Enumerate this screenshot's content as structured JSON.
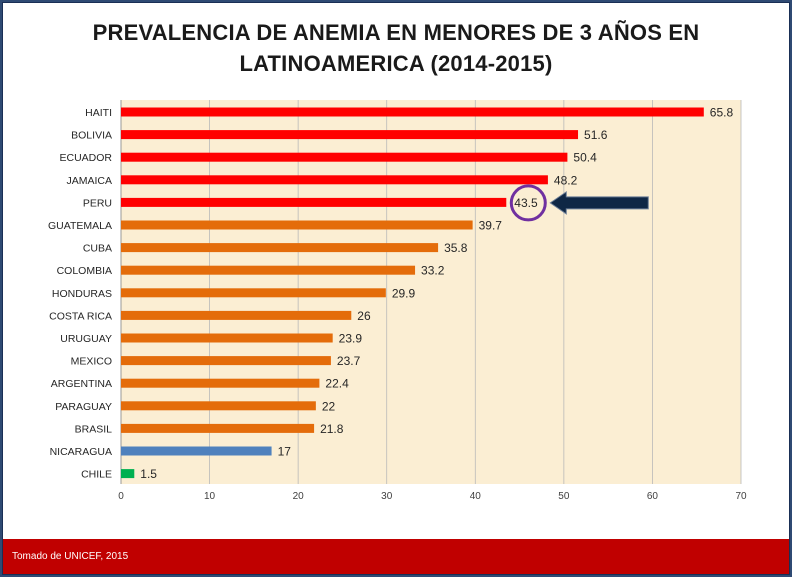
{
  "title_lines": [
    "PREVALENCIA DE ANEMIA EN MENORES DE 3 AÑOS EN",
    "LATINOAMERICA (2014-2015)"
  ],
  "footer": "Tomado de UNICEF, 2015",
  "colors": {
    "red": "#ff0000",
    "orange": "#e46c0a",
    "blue": "#4f81bd",
    "green": "#00b050",
    "highlight_circle": "#7030a0",
    "arrow": "#0f2745",
    "plot_bg": "#fbeed3",
    "footer_bg": "#c00000"
  },
  "chart_data": {
    "type": "bar",
    "orientation": "horizontal",
    "categories": [
      "HAITI",
      "BOLIVIA",
      "ECUADOR",
      "JAMAICA",
      "PERU",
      "GUATEMALA",
      "CUBA",
      "COLOMBIA",
      "HONDURAS",
      "COSTA RICA",
      "URUGUAY",
      "MEXICO",
      "ARGENTINA",
      "PARAGUAY",
      "BRASIL",
      "NICARAGUA",
      "CHILE"
    ],
    "values": [
      65.8,
      51.6,
      50.4,
      48.2,
      43.5,
      39.7,
      35.8,
      33.2,
      29.9,
      26,
      23.9,
      23.7,
      22.4,
      22,
      21.8,
      17,
      1.5
    ],
    "value_labels": [
      "65.8",
      "51.6",
      "50.4",
      "48.2",
      "43.5",
      "39.7",
      "35.8",
      "33.2",
      "29.9",
      "26",
      "23.9",
      "23.7",
      "22.4",
      "22",
      "21.8",
      "17",
      "1.5"
    ],
    "bar_colors": [
      "red",
      "red",
      "red",
      "red",
      "red",
      "orange",
      "orange",
      "orange",
      "orange",
      "orange",
      "orange",
      "orange",
      "orange",
      "orange",
      "orange",
      "blue",
      "green"
    ],
    "xlim": [
      0,
      70
    ],
    "xticks": [
      0,
      10,
      20,
      30,
      40,
      50,
      60,
      70
    ],
    "grid": true,
    "highlight": "PERU",
    "annotation": "arrow pointing to PERU value"
  }
}
